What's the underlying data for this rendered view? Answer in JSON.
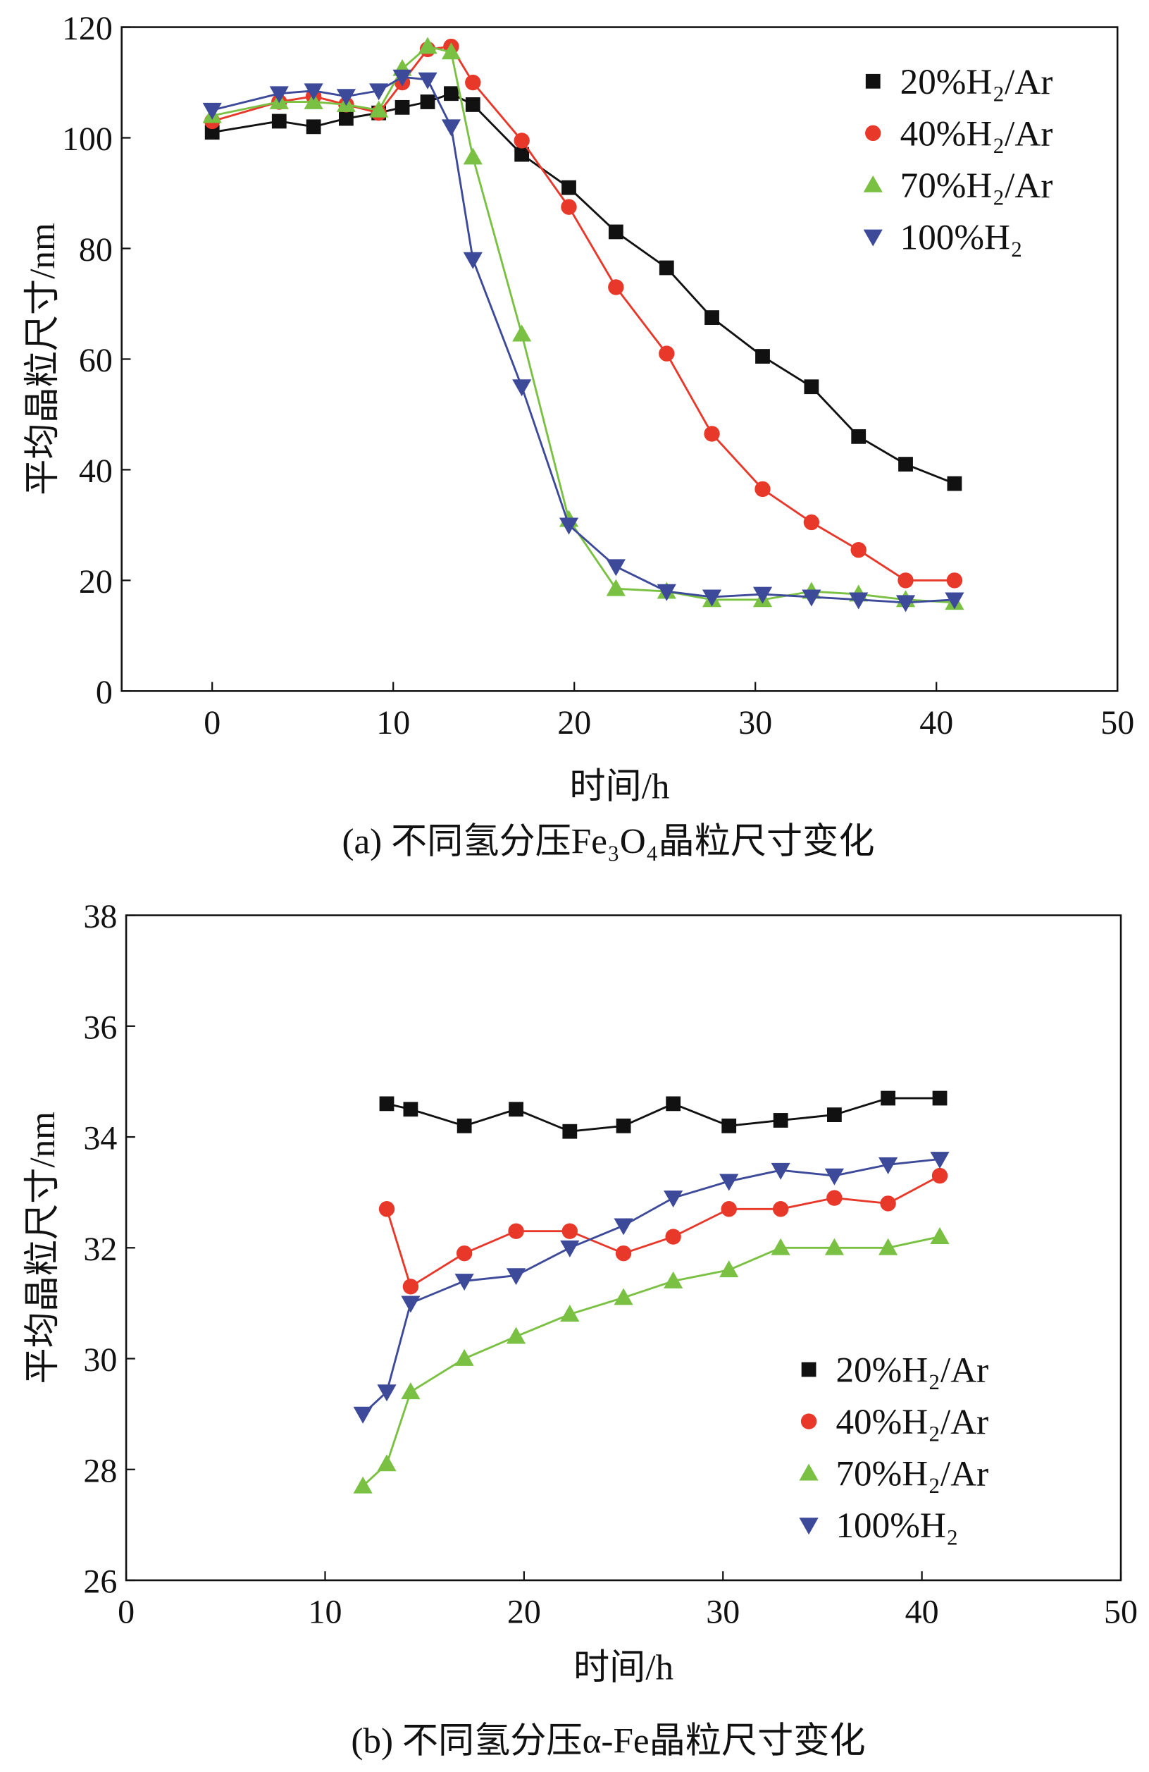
{
  "chart_data": [
    {
      "type": "line",
      "title": "(a) 不同氢分压Fe₃O₄晶粒尺寸变化",
      "xlabel": "时间/h",
      "ylabel": "平均晶粒尺寸/nm",
      "xlim": [
        -5,
        50
      ],
      "ylim": [
        0,
        120
      ],
      "xticks": [
        0,
        10,
        20,
        30,
        40,
        50
      ],
      "yticks": [
        0,
        20,
        40,
        60,
        80,
        100,
        120
      ],
      "legend_position": "top-right",
      "x": [
        0,
        3.7,
        5.6,
        7.4,
        9.2,
        10.5,
        11.9,
        13.2,
        14.4,
        17.1,
        19.7,
        22.3,
        25.1,
        27.6,
        30.4,
        33.1,
        35.7,
        38.3,
        41
      ],
      "series": [
        {
          "name": "20%H₂/Ar",
          "color": "#111111",
          "marker": "square",
          "values": [
            101,
            103,
            102,
            103.5,
            104.5,
            105.5,
            106.5,
            108,
            106,
            97,
            91,
            83,
            76.5,
            67.5,
            60.5,
            55,
            46,
            41,
            37.5
          ]
        },
        {
          "name": "40%H₂/Ar",
          "color": "#e8382a",
          "marker": "circle",
          "values": [
            103,
            106.5,
            107.5,
            106,
            104.5,
            110,
            116,
            116.5,
            110,
            99.5,
            87.5,
            73,
            61,
            46.5,
            36.5,
            30.5,
            25.5,
            20,
            20
          ]
        },
        {
          "name": "70%H₂/Ar",
          "color": "#7ac143",
          "marker": "triangle-up",
          "values": [
            104,
            106.5,
            106.5,
            106,
            105,
            112.5,
            116.5,
            115.5,
            96.5,
            64.5,
            31,
            18.5,
            18,
            16.5,
            16.5,
            18,
            17.5,
            16.5,
            16
          ]
        },
        {
          "name": "100%H₂",
          "color": "#3d4a9a",
          "marker": "triangle-down",
          "values": [
            105,
            108,
            108.5,
            107.5,
            108.5,
            111,
            110.5,
            102,
            78,
            55,
            30,
            22.5,
            18,
            17,
            17.5,
            17,
            16.5,
            16,
            16.5
          ]
        }
      ]
    },
    {
      "type": "line",
      "title": "(b) 不同氢分压α-Fe晶粒尺寸变化",
      "xlabel": "时间/h",
      "ylabel": "平均晶粒尺寸/nm",
      "xlim": [
        0,
        50
      ],
      "ylim": [
        26,
        38
      ],
      "xticks": [
        0,
        10,
        20,
        30,
        40,
        50
      ],
      "yticks": [
        26,
        28,
        30,
        32,
        34,
        36,
        38
      ],
      "legend_position": "bottom-right",
      "series": [
        {
          "name": "20%H₂/Ar",
          "color": "#111111",
          "marker": "square",
          "x": [
            13.1,
            14.3,
            17,
            19.6,
            22.3,
            25,
            27.5,
            30.3,
            32.9,
            35.6,
            38.3,
            40.9
          ],
          "values": [
            34.6,
            34.5,
            34.2,
            34.5,
            34.1,
            34.2,
            34.6,
            34.2,
            34.3,
            34.4,
            34.7,
            34.7
          ]
        },
        {
          "name": "40%H₂/Ar",
          "color": "#e8382a",
          "marker": "circle",
          "x": [
            13.1,
            14.3,
            17,
            19.6,
            22.3,
            25,
            27.5,
            30.3,
            32.9,
            35.6,
            38.3,
            40.9
          ],
          "values": [
            32.7,
            31.3,
            31.9,
            32.3,
            32.3,
            31.9,
            32.2,
            32.7,
            32.7,
            32.9,
            32.8,
            33.3
          ]
        },
        {
          "name": "70%H₂/Ar",
          "color": "#7ac143",
          "marker": "triangle-up",
          "x": [
            11.9,
            13.1,
            14.3,
            17,
            19.6,
            22.3,
            25,
            27.5,
            30.3,
            32.9,
            35.6,
            38.3,
            40.9
          ],
          "values": [
            27.7,
            28.1,
            29.4,
            30.0,
            30.4,
            30.8,
            31.1,
            31.4,
            31.6,
            32.0,
            32.0,
            32.0,
            32.2
          ]
        },
        {
          "name": "100%H₂",
          "color": "#3d4a9a",
          "marker": "triangle-down",
          "x": [
            11.9,
            13.1,
            14.3,
            17,
            19.6,
            22.3,
            25,
            27.5,
            30.3,
            32.9,
            35.6,
            38.3,
            40.9
          ],
          "values": [
            29.0,
            29.4,
            31.0,
            31.4,
            31.5,
            32.0,
            32.4,
            32.9,
            33.2,
            33.4,
            33.3,
            33.5,
            33.6
          ]
        }
      ]
    }
  ]
}
